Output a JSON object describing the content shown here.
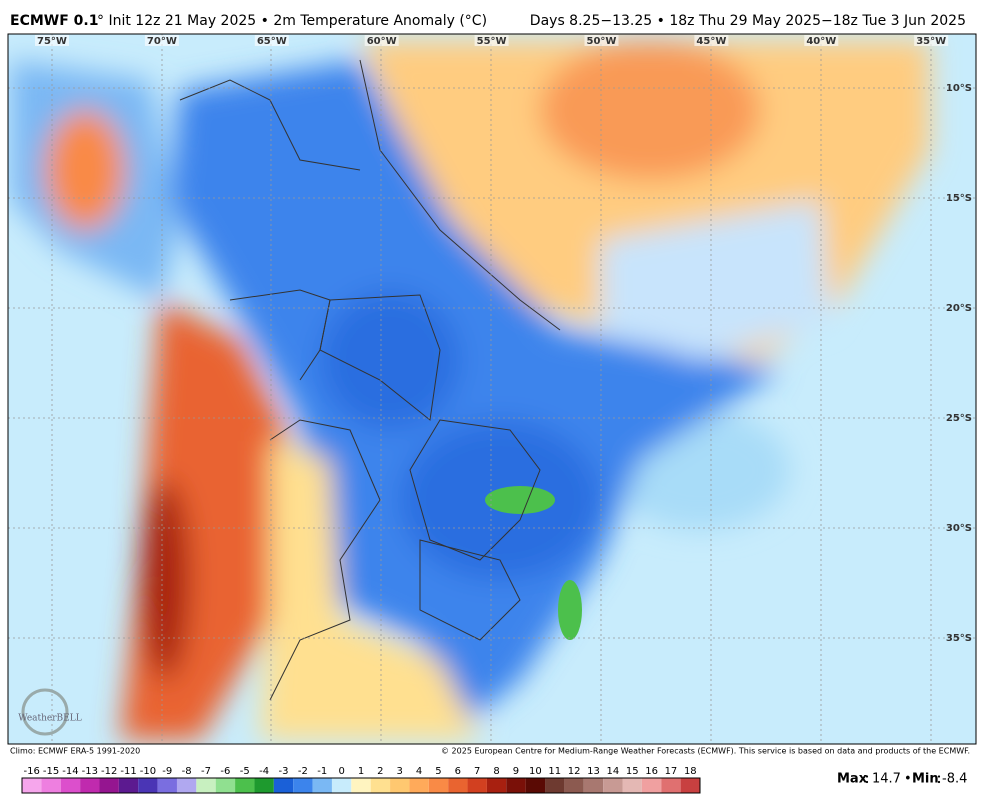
{
  "header": {
    "title": "ECMWF 0.1",
    "title_rest": "° Init 12z 21 May 2025 • 2m Temperature Anomaly (°C)",
    "period": "Days 8.25−13.25 • 18z Thu 29 May 2025−18z Tue 3 Jun 2025"
  },
  "map": {
    "lon_labels": [
      "75°W",
      "70°W",
      "65°W",
      "60°W",
      "55°W",
      "50°W",
      "45°W",
      "40°W",
      "35°W"
    ],
    "lat_labels": [
      "10°S",
      "15°S",
      "20°S",
      "25°S",
      "30°S",
      "35°S"
    ],
    "logo": "WeatherBELL"
  },
  "footer": {
    "climo": "Climo: ECMWF ERA-5 1991-2020",
    "copyright": "© 2025 European Centre for Medium-Range Weather Forecasts (ECMWF). This service is based on data and products of the ECMWF."
  },
  "colorbar": {
    "ticks": [
      -16,
      -15,
      -14,
      -13,
      -12,
      -11,
      -10,
      -9,
      -8,
      -7,
      -6,
      -5,
      -4,
      -3,
      -2,
      -1,
      0,
      1,
      2,
      3,
      4,
      5,
      6,
      7,
      8,
      9,
      10,
      11,
      12,
      13,
      14,
      15,
      16,
      17,
      18
    ],
    "colors": [
      "#f6a6ec",
      "#ee7fe0",
      "#dc4fcc",
      "#c02aae",
      "#951590",
      "#5c1a90",
      "#4a35b5",
      "#7a6ee0",
      "#b0a8f0",
      "#c8f0c0",
      "#90e090",
      "#4cc04c",
      "#1e9a2e",
      "#1a60d8",
      "#3c84ec",
      "#7ab8f4",
      "#c8ecfc",
      "#fff4c0",
      "#ffe090",
      "#ffc870",
      "#ffaa5a",
      "#f98a46",
      "#e96430",
      "#d24020",
      "#a82010",
      "#7a1008",
      "#5a0a04",
      "#6e3a30",
      "#8c5a50",
      "#a87870",
      "#c89a94",
      "#e4b8b4",
      "#f0a0a0",
      "#e07070",
      "#c84040"
    ]
  },
  "stats": {
    "max_label": "Max",
    "max": 14.7,
    "separator": "•",
    "min_label": "Min",
    "min": -8.4
  }
}
